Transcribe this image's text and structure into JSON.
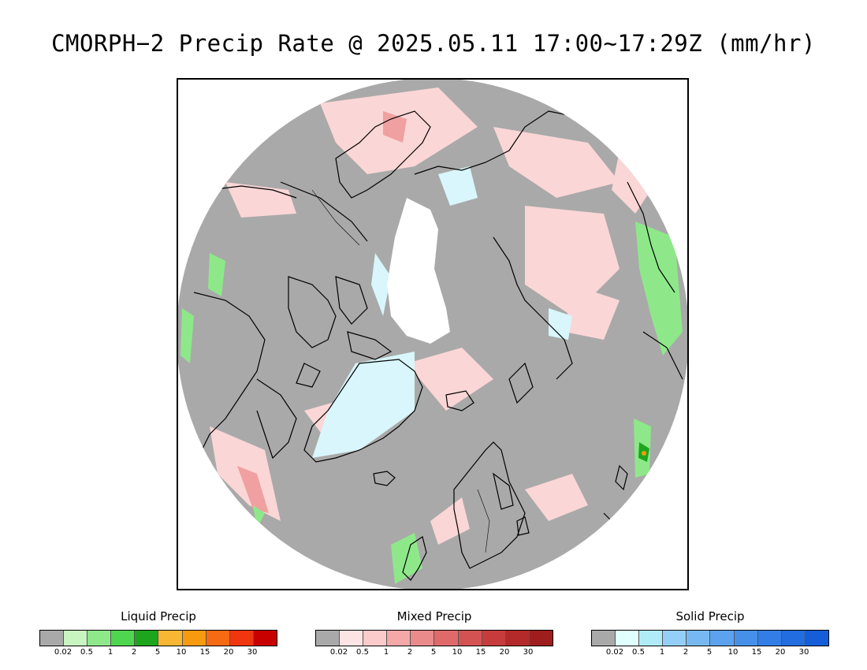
{
  "title": "CMORPH−2 Precip Rate @ 2025.05.11 17:00~17:29Z (mm/hr)",
  "map": {
    "projection": "north-polar-stereographic",
    "no_data_color": "#ffffff",
    "background_color": "#a9a9a9",
    "coastline_color": "#000000"
  },
  "legends": [
    {
      "title": "Liquid Precip",
      "colors": [
        "#a9a9a9",
        "#c8f5c0",
        "#8ee88a",
        "#4fd64f",
        "#1ea51e",
        "#f7b733",
        "#f79a0f",
        "#f56a12",
        "#f0360f",
        "#c90000"
      ],
      "ticks": [
        "0.02",
        "0.5",
        "1",
        "2",
        "5",
        "10",
        "15",
        "20",
        "30"
      ]
    },
    {
      "title": "Mixed Precip",
      "colors": [
        "#a9a9a9",
        "#fde4e4",
        "#fbcaca",
        "#f4a8a8",
        "#ea8a8a",
        "#e06a6a",
        "#d45252",
        "#c63c3c",
        "#b42a2a",
        "#9e1e1e"
      ],
      "ticks": [
        "0.02",
        "0.5",
        "1",
        "2",
        "5",
        "10",
        "15",
        "20",
        "30"
      ]
    },
    {
      "title": "Solid Precip",
      "colors": [
        "#a9a9a9",
        "#e0ffff",
        "#b0ecf8",
        "#94cff7",
        "#78b8f2",
        "#5ca2ee",
        "#4690ea",
        "#327ee6",
        "#226ddf",
        "#155ed8"
      ],
      "ticks": [
        "0.02",
        "0.5",
        "1",
        "2",
        "5",
        "10",
        "15",
        "20",
        "30"
      ]
    }
  ]
}
